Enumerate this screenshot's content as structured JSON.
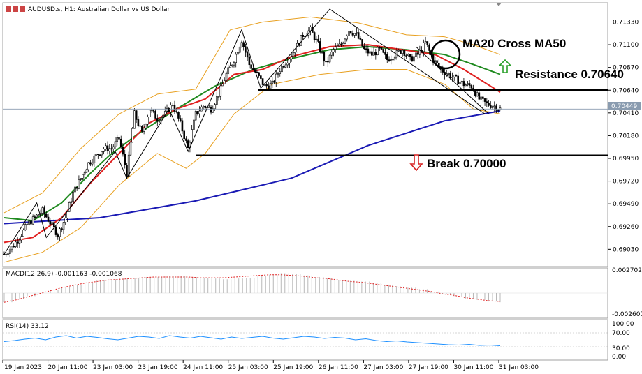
{
  "chart_data": {
    "type": "candlestick",
    "symbol": "AUDUSD.s",
    "timeframe": "H1",
    "description": "Australian Dollar vs US Dollar",
    "current_price": "0.70449",
    "price_ticks": [
      "0.71330",
      "0.71100",
      "0.70870",
      "0.70640",
      "0.70410",
      "0.70180",
      "0.69950",
      "0.69720",
      "0.69490",
      "0.69260",
      "0.69030"
    ],
    "price_range": [
      0.6887,
      0.7151
    ],
    "time_labels": [
      "19 Jan 2023",
      "20 Jan 11:00",
      "23 Jan 03:00",
      "23 Jan 19:00",
      "24 Jan 11:00",
      "25 Jan 03:00",
      "25 Jan 19:00",
      "26 Jan 11:00",
      "27 Jan 03:00",
      "27 Jan 19:00",
      "30 Jan 11:00",
      "31 Jan 03:00"
    ],
    "close_path": [
      [
        0,
        0.6898
      ],
      [
        4,
        0.6905
      ],
      [
        8,
        0.6915
      ],
      [
        12,
        0.6928
      ],
      [
        16,
        0.6935
      ],
      [
        20,
        0.6942
      ],
      [
        24,
        0.693
      ],
      [
        28,
        0.6918
      ],
      [
        32,
        0.6935
      ],
      [
        36,
        0.696
      ],
      [
        40,
        0.6975
      ],
      [
        44,
        0.699
      ],
      [
        48,
        0.6998
      ],
      [
        52,
        0.7005
      ],
      [
        56,
        0.7005
      ],
      [
        60,
        0.7015
      ],
      [
        64,
        0.698
      ],
      [
        68,
        0.704
      ],
      [
        72,
        0.702
      ],
      [
        76,
        0.7045
      ],
      [
        80,
        0.7035
      ],
      [
        84,
        0.704
      ],
      [
        88,
        0.705
      ],
      [
        92,
        0.703
      ],
      [
        96,
        0.7005
      ],
      [
        100,
        0.704
      ],
      [
        104,
        0.7048
      ],
      [
        108,
        0.7045
      ],
      [
        112,
        0.706
      ],
      [
        116,
        0.708
      ],
      [
        120,
        0.7095
      ],
      [
        124,
        0.7115
      ],
      [
        128,
        0.709
      ],
      [
        132,
        0.708
      ],
      [
        136,
        0.7068
      ],
      [
        140,
        0.707
      ],
      [
        144,
        0.7085
      ],
      [
        148,
        0.7095
      ],
      [
        152,
        0.7105
      ],
      [
        156,
        0.712
      ],
      [
        160,
        0.7125
      ],
      [
        164,
        0.711
      ],
      [
        168,
        0.709
      ],
      [
        172,
        0.7105
      ],
      [
        176,
        0.711
      ],
      [
        180,
        0.7125
      ],
      [
        184,
        0.712
      ],
      [
        188,
        0.7105
      ],
      [
        192,
        0.71
      ],
      [
        196,
        0.7105
      ],
      [
        200,
        0.7095
      ],
      [
        204,
        0.71
      ],
      [
        208,
        0.7105
      ],
      [
        212,
        0.7095
      ],
      [
        216,
        0.71
      ],
      [
        220,
        0.7112
      ],
      [
        224,
        0.7095
      ],
      [
        228,
        0.7085
      ],
      [
        232,
        0.708
      ],
      [
        236,
        0.7075
      ],
      [
        240,
        0.707
      ],
      [
        244,
        0.7068
      ],
      [
        248,
        0.7055
      ],
      [
        252,
        0.705
      ],
      [
        256,
        0.7048
      ],
      [
        259,
        0.7045
      ]
    ],
    "ma_blue_path": [
      [
        0,
        0.6929
      ],
      [
        50,
        0.6935
      ],
      [
        100,
        0.6952
      ],
      [
        150,
        0.6975
      ],
      [
        190,
        0.7008
      ],
      [
        230,
        0.7033
      ],
      [
        259,
        0.7043
      ]
    ],
    "ma_green_path": [
      [
        0,
        0.6935
      ],
      [
        15,
        0.6932
      ],
      [
        30,
        0.695
      ],
      [
        45,
        0.698
      ],
      [
        55,
        0.6998
      ],
      [
        70,
        0.702
      ],
      [
        90,
        0.7045
      ],
      [
        110,
        0.7068
      ],
      [
        130,
        0.7085
      ],
      [
        150,
        0.7096
      ],
      [
        170,
        0.7105
      ],
      [
        190,
        0.7108
      ],
      [
        210,
        0.7105
      ],
      [
        230,
        0.71
      ],
      [
        245,
        0.709
      ],
      [
        259,
        0.708
      ]
    ],
    "ma_red_path": [
      [
        0,
        0.691
      ],
      [
        15,
        0.6915
      ],
      [
        30,
        0.6935
      ],
      [
        45,
        0.697
      ],
      [
        60,
        0.7
      ],
      [
        75,
        0.703
      ],
      [
        90,
        0.7045
      ],
      [
        105,
        0.7055
      ],
      [
        120,
        0.708
      ],
      [
        135,
        0.7085
      ],
      [
        150,
        0.7098
      ],
      [
        170,
        0.7108
      ],
      [
        190,
        0.711
      ],
      [
        215,
        0.7103
      ],
      [
        225,
        0.71
      ],
      [
        240,
        0.7085
      ],
      [
        259,
        0.7062
      ]
    ],
    "bb_upper_path": [
      [
        0,
        0.694
      ],
      [
        20,
        0.696
      ],
      [
        40,
        0.7005
      ],
      [
        60,
        0.704
      ],
      [
        80,
        0.706
      ],
      [
        100,
        0.7065
      ],
      [
        118,
        0.7125
      ],
      [
        135,
        0.7133
      ],
      [
        160,
        0.7138
      ],
      [
        185,
        0.7132
      ],
      [
        210,
        0.712
      ],
      [
        230,
        0.7118
      ],
      [
        245,
        0.711
      ],
      [
        259,
        0.71
      ]
    ],
    "bb_lower_path": [
      [
        0,
        0.689
      ],
      [
        20,
        0.69
      ],
      [
        40,
        0.6925
      ],
      [
        60,
        0.6968
      ],
      [
        80,
        0.7
      ],
      [
        95,
        0.6985
      ],
      [
        105,
        0.7
      ],
      [
        120,
        0.704
      ],
      [
        140,
        0.707
      ],
      [
        165,
        0.708
      ],
      [
        190,
        0.7085
      ],
      [
        210,
        0.7085
      ],
      [
        230,
        0.707
      ],
      [
        245,
        0.7045
      ],
      [
        259,
        0.704
      ]
    ],
    "annotations": {
      "cross_label": "MA20 Cross MA50",
      "resistance_label": "Resistance 0.70640",
      "break_label": "Break 0.70000"
    },
    "resistance_level": 0.7064,
    "support_level": 0.6998,
    "macd": {
      "title": "MACD(12,26,9) -0.001163 -0.001068",
      "ticks": [
        "0.002702",
        "-0.002607"
      ],
      "range": [
        -0.0031,
        0.0031
      ],
      "histogram": [
        -0.0012,
        -0.0008,
        -0.0004,
        0.0,
        0.0004,
        0.0008,
        0.0011,
        0.0014,
        0.0017,
        0.0018,
        0.0019,
        0.002,
        0.0021,
        0.0021,
        0.0022,
        0.0022,
        0.0021,
        0.002,
        0.0019,
        0.0018,
        0.0019,
        0.002,
        0.0022,
        0.0024,
        0.0026,
        0.0025,
        0.0023,
        0.0021,
        0.0019,
        0.0017,
        0.0016,
        0.0015,
        0.0013,
        0.0011,
        0.0009,
        0.0007,
        0.0005,
        0.0002,
        -0.0001,
        -0.0004,
        -0.0007,
        -0.0009,
        -0.0011,
        -0.0012
      ],
      "signal": [
        -0.0012,
        -0.0009,
        -0.0005,
        -0.0001,
        0.0003,
        0.0007,
        0.001,
        0.0013,
        0.0015,
        0.0017,
        0.0018,
        0.0019,
        0.002,
        0.0021,
        0.0021,
        0.0021,
        0.0021,
        0.002,
        0.002,
        0.002,
        0.0021,
        0.0022,
        0.0023,
        0.0024,
        0.0024,
        0.0023,
        0.0022,
        0.002,
        0.0019,
        0.0017,
        0.0015,
        0.0014,
        0.0012,
        0.001,
        0.0008,
        0.0006,
        0.0004,
        0.0002,
        -0.0001,
        -0.0003,
        -0.0006,
        -0.0008,
        -0.001,
        -0.0011
      ]
    },
    "rsi": {
      "title": "RSI(14) 33.12",
      "ticks": [
        "100.00",
        "70.00",
        "30.00",
        "0.00"
      ],
      "levels": [
        70,
        30
      ],
      "values": [
        45,
        48,
        52,
        55,
        50,
        58,
        62,
        55,
        60,
        57,
        53,
        50,
        55,
        60,
        58,
        54,
        62,
        58,
        55,
        60,
        56,
        52,
        58,
        54,
        57,
        60,
        55,
        52,
        56,
        60,
        58,
        54,
        57,
        55,
        50,
        53,
        48,
        45,
        47,
        44,
        42,
        40,
        38,
        36,
        35,
        37,
        34,
        35,
        33
      ]
    }
  }
}
